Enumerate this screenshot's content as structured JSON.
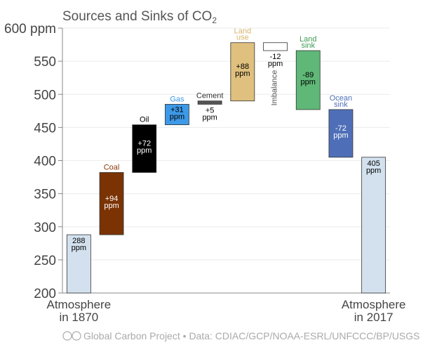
{
  "chart_data": {
    "type": "bar",
    "subtype": "waterfall",
    "title": "Sources and Sinks of CO",
    "title_subscript": "2",
    "ylim": [
      200,
      600
    ],
    "yticks": [
      200,
      250,
      300,
      350,
      400,
      450,
      500,
      550,
      600
    ],
    "ytick_labels": [
      "200",
      "250",
      "300",
      "350",
      "400",
      "450",
      "500",
      "550",
      "600 ppm"
    ],
    "grid": true,
    "bars": [
      {
        "name": "",
        "from": 200,
        "to": 288,
        "value_label": "288\nppm",
        "color": "#d3e1ef",
        "label_color": "#000000",
        "start_label": "Atmosphere\nin 1870"
      },
      {
        "name": "Coal",
        "from": 288,
        "to": 382,
        "value_label": "+94\nppm",
        "color": "#7b3304",
        "label_color": "#ffffff",
        "name_color": "#8b3a0a"
      },
      {
        "name": "Oil",
        "from": 382,
        "to": 454,
        "value_label": "+72\nppm",
        "color": "#000000",
        "label_color": "#ffffff",
        "name_color": "#000000"
      },
      {
        "name": "Gas",
        "from": 454,
        "to": 485,
        "value_label": "+31\nppm",
        "color": "#3d99e8",
        "label_color": "#000000",
        "name_color": "#3d99e8"
      },
      {
        "name": "Cement",
        "from": 485,
        "to": 490,
        "value_label": "+5\nppm",
        "color": "#555555",
        "label_color": "#000000",
        "name_color": "#333333",
        "label_below": true
      },
      {
        "name": "Land\nuse",
        "from": 490,
        "to": 578,
        "value_label": "+88\nppm",
        "color": "#dfc07e",
        "label_color": "#000000",
        "name_color": "#d8b46a"
      },
      {
        "name": "Imbalance",
        "from": 578,
        "to": 566,
        "value_label": "-12\nppm",
        "color": "#ffffff",
        "label_color": "#000000",
        "name_color": "#555555",
        "label_below": true,
        "vertical_name": true
      },
      {
        "name": "Land\nsink",
        "from": 566,
        "to": 477,
        "value_label": "-89\nppm",
        "color": "#5fb877",
        "label_color": "#000000",
        "name_color": "#3e9c55"
      },
      {
        "name": "Ocean\nsink",
        "from": 477,
        "to": 405,
        "value_label": "-72\nppm",
        "color": "#4e6fb8",
        "label_color": "#ffffff",
        "name_color": "#4e6fb8"
      },
      {
        "name": "",
        "from": 200,
        "to": 405,
        "value_label": "405\nppm",
        "color": "#d3e1ef",
        "label_color": "#000000",
        "end_label": "Atmosphere\nin 2017"
      }
    ]
  },
  "credit": {
    "project": "Global Carbon Project",
    "separator": "•",
    "source": "Data: CDIAC/GCP/NOAA-ESRL/UNFCCC/BP/USGS"
  }
}
